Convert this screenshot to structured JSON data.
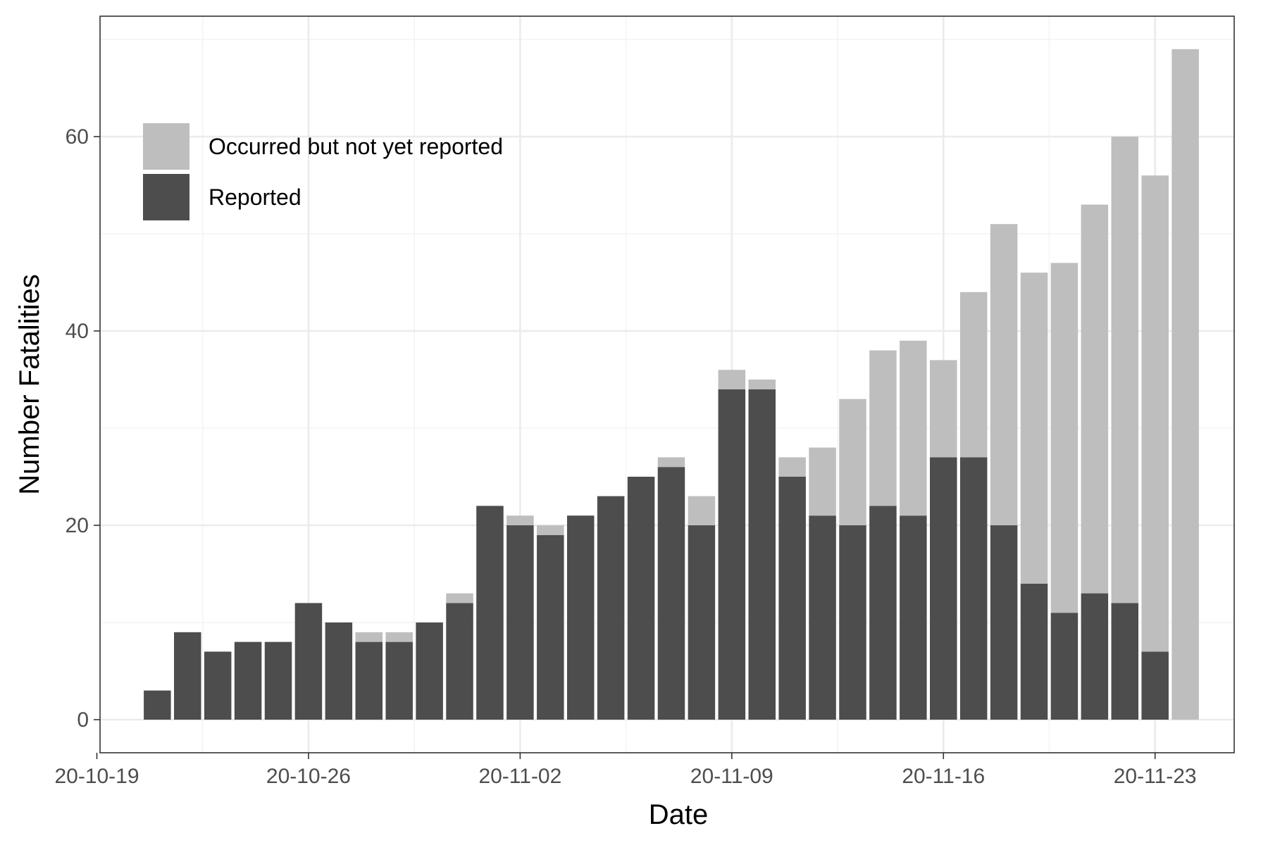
{
  "colors": {
    "occurred_not_reported": "#bebebe",
    "reported": "#4d4d4d",
    "grid_major": "#ebebeb",
    "grid_minor": "#f3f3f3",
    "panel_border": "#333333",
    "background": "#ffffff"
  },
  "chart_data": {
    "type": "bar",
    "stacked": true,
    "title": "",
    "xlabel": "Date",
    "ylabel": "Number Fatalities",
    "x_tick_labels": [
      "20-10-19",
      "20-10-26",
      "20-11-02",
      "20-11-09",
      "20-11-16",
      "20-11-23"
    ],
    "y_tick_labels": [
      "0",
      "20",
      "40",
      "60"
    ],
    "ylim": [
      0,
      69
    ],
    "grid": true,
    "legend_position": "top-left",
    "legend": [
      {
        "key": "occurred",
        "label": "Occurred but not yet reported"
      },
      {
        "key": "reported",
        "label": "Reported"
      }
    ],
    "dates": [
      "20-10-21",
      "20-10-22",
      "20-10-23",
      "20-10-24",
      "20-10-25",
      "20-10-26",
      "20-10-27",
      "20-10-28",
      "20-10-29",
      "20-10-30",
      "20-10-31",
      "20-11-01",
      "20-11-02",
      "20-11-03",
      "20-11-04",
      "20-11-05",
      "20-11-06",
      "20-11-07",
      "20-11-08",
      "20-11-09",
      "20-11-10",
      "20-11-11",
      "20-11-12",
      "20-11-13",
      "20-11-14",
      "20-11-15",
      "20-11-16",
      "20-11-17",
      "20-11-18",
      "20-11-19",
      "20-11-20",
      "20-11-21",
      "20-11-22",
      "20-11-23",
      "20-11-24"
    ],
    "series": [
      {
        "name": "Reported",
        "key": "reported",
        "values": [
          3,
          9,
          7,
          8,
          8,
          12,
          10,
          8,
          8,
          10,
          12,
          22,
          20,
          19,
          21,
          23,
          25,
          26,
          20,
          34,
          34,
          25,
          21,
          20,
          22,
          21,
          27,
          27,
          20,
          14,
          11,
          13,
          12,
          7,
          0
        ]
      },
      {
        "name": "Occurred but not yet reported",
        "key": "occurred",
        "values": [
          0,
          0,
          0,
          0,
          0,
          0,
          0,
          1,
          1,
          0,
          1,
          0,
          1,
          1,
          0,
          0,
          0,
          1,
          3,
          2,
          1,
          2,
          7,
          13,
          16,
          18,
          10,
          17,
          31,
          32,
          36,
          40,
          48,
          49,
          69
        ]
      }
    ]
  }
}
